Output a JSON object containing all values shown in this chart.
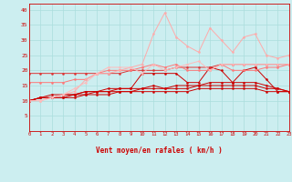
{
  "xlabel": "Vent moyen/en rafales ( km/h )",
  "xlim": [
    0,
    23
  ],
  "ylim": [
    0,
    42
  ],
  "yticks": [
    5,
    10,
    15,
    20,
    25,
    30,
    35,
    40
  ],
  "xticks": [
    0,
    1,
    2,
    3,
    4,
    5,
    6,
    7,
    8,
    9,
    10,
    11,
    12,
    13,
    14,
    15,
    16,
    17,
    18,
    19,
    20,
    21,
    22,
    23
  ],
  "background_color": "#cceef0",
  "grid_color": "#aadddd",
  "series": [
    {
      "color": "#cc0000",
      "markersize": 1.5,
      "linewidth": 0.7,
      "y": [
        10,
        11,
        11,
        11,
        11,
        12,
        12,
        12,
        13,
        13,
        13,
        13,
        13,
        13,
        13,
        14,
        14,
        14,
        14,
        14,
        14,
        13,
        13,
        13
      ]
    },
    {
      "color": "#cc0000",
      "markersize": 1.5,
      "linewidth": 0.7,
      "y": [
        10,
        11,
        11,
        11,
        12,
        12,
        13,
        13,
        13,
        13,
        14,
        14,
        14,
        14,
        14,
        15,
        15,
        15,
        15,
        15,
        15,
        14,
        14,
        13
      ]
    },
    {
      "color": "#cc0000",
      "markersize": 1.5,
      "linewidth": 0.7,
      "y": [
        10,
        11,
        11,
        12,
        12,
        13,
        13,
        13,
        14,
        14,
        14,
        15,
        14,
        15,
        15,
        15,
        16,
        16,
        16,
        16,
        16,
        15,
        14,
        13
      ]
    },
    {
      "color": "#cc0000",
      "markersize": 1.5,
      "linewidth": 0.7,
      "y": [
        10,
        11,
        12,
        12,
        12,
        13,
        13,
        14,
        14,
        14,
        19,
        19,
        19,
        19,
        16,
        16,
        21,
        20,
        16,
        20,
        21,
        17,
        13,
        13
      ]
    },
    {
      "color": "#dd3333",
      "markersize": 1.5,
      "linewidth": 0.7,
      "y": [
        19,
        19,
        19,
        19,
        19,
        19,
        19,
        19,
        19,
        20,
        20,
        20,
        20,
        21,
        21,
        21,
        21,
        22,
        22,
        22,
        22,
        22,
        22,
        22
      ]
    },
    {
      "color": "#ff7777",
      "markersize": 1.5,
      "linewidth": 0.7,
      "y": [
        16,
        16,
        16,
        16,
        17,
        17,
        19,
        20,
        20,
        20,
        21,
        22,
        21,
        22,
        20,
        20,
        20,
        22,
        20,
        20,
        20,
        21,
        21,
        22
      ]
    },
    {
      "color": "#ffaaaa",
      "markersize": 1.5,
      "linewidth": 0.7,
      "y": [
        10,
        10,
        11,
        12,
        13,
        17,
        19,
        19,
        20,
        21,
        22,
        32,
        39,
        31,
        28,
        26,
        34,
        30,
        26,
        31,
        32,
        25,
        24,
        25
      ]
    },
    {
      "color": "#ffbbbb",
      "markersize": 1.5,
      "linewidth": 0.7,
      "y": [
        10,
        10,
        11,
        12,
        14,
        16,
        19,
        21,
        21,
        21,
        19,
        22,
        20,
        21,
        22,
        23,
        20,
        22,
        22,
        22,
        22,
        22,
        22,
        22
      ]
    }
  ],
  "arrow_angles": [
    45,
    60,
    60,
    110,
    110,
    90,
    90,
    90,
    90,
    90,
    90,
    120,
    135,
    135,
    135,
    150,
    135,
    135,
    135,
    135,
    135,
    135,
    135,
    135
  ]
}
